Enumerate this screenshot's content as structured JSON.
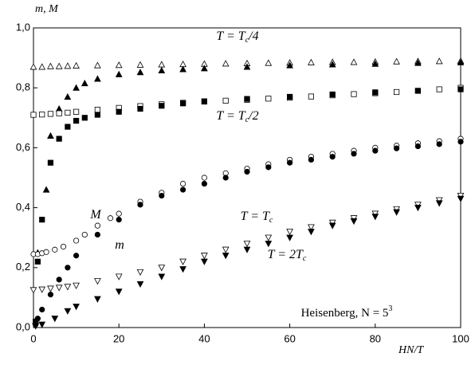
{
  "chart_data": {
    "type": "scatter",
    "x_label": "HN/T",
    "y_label": "m, M",
    "xlim": [
      0,
      100
    ],
    "ylim": [
      0,
      1.0
    ],
    "xticks": [
      0,
      20,
      40,
      60,
      80,
      100
    ],
    "yticks": [
      {
        "value": 0,
        "label": "0,0"
      },
      {
        "value": 0.2,
        "label": "0,2"
      },
      {
        "value": 0.4,
        "label": "0,4"
      },
      {
        "value": 0.6,
        "label": "0,6"
      },
      {
        "value": 0.8,
        "label": "0,8"
      },
      {
        "value": 1.0,
        "label": "1,0"
      }
    ],
    "annotations": [
      {
        "parts": [
          "T = T",
          "c",
          "/4"
        ]
      },
      {
        "parts": [
          "T = T",
          "c",
          "/2"
        ]
      },
      {
        "parts": [
          "T = T",
          "c",
          ""
        ]
      },
      {
        "parts": [
          "T = 2T",
          "c",
          ""
        ]
      },
      {
        "parts": [
          "M"
        ]
      },
      {
        "parts": [
          "m"
        ]
      },
      {
        "parts": [
          "Heisenberg,  N = 5",
          "3",
          ""
        ]
      }
    ],
    "series": [
      {
        "marker": "triangle-up",
        "filled": false,
        "color": "#000000",
        "x": [
          0,
          2,
          4,
          6,
          8,
          10,
          15,
          20,
          25,
          30,
          35,
          40,
          45,
          50,
          55,
          60,
          65,
          70,
          75,
          80,
          85,
          90,
          95,
          100
        ],
        "values": [
          0.87,
          0.87,
          0.872,
          0.872,
          0.873,
          0.874,
          0.875,
          0.876,
          0.877,
          0.878,
          0.879,
          0.88,
          0.881,
          0.882,
          0.883,
          0.884,
          0.885,
          0.886,
          0.886,
          0.887,
          0.888,
          0.889,
          0.889,
          0.89
        ]
      },
      {
        "marker": "triangle-up",
        "filled": true,
        "color": "#000000",
        "x": [
          0.5,
          1,
          3,
          4,
          6,
          8,
          10,
          12,
          15,
          20,
          25,
          30,
          35,
          40,
          50,
          60,
          70,
          80,
          90,
          100
        ],
        "values": [
          0.02,
          0.25,
          0.46,
          0.64,
          0.73,
          0.77,
          0.8,
          0.815,
          0.83,
          0.845,
          0.852,
          0.858,
          0.862,
          0.865,
          0.87,
          0.875,
          0.878,
          0.88,
          0.883,
          0.885
        ]
      },
      {
        "marker": "square",
        "filled": false,
        "color": "#000000",
        "x": [
          0,
          2,
          4,
          6,
          8,
          10,
          15,
          20,
          25,
          30,
          35,
          40,
          45,
          50,
          55,
          60,
          65,
          70,
          75,
          80,
          85,
          90,
          95,
          100
        ],
        "values": [
          0.71,
          0.711,
          0.713,
          0.715,
          0.717,
          0.72,
          0.727,
          0.733,
          0.739,
          0.745,
          0.75,
          0.754,
          0.757,
          0.76,
          0.764,
          0.767,
          0.771,
          0.775,
          0.779,
          0.782,
          0.786,
          0.79,
          0.795,
          0.8
        ]
      },
      {
        "marker": "square",
        "filled": true,
        "color": "#000000",
        "x": [
          0.5,
          1,
          2,
          4,
          6,
          8,
          10,
          12,
          15,
          20,
          25,
          30,
          35,
          40,
          50,
          60,
          70,
          80,
          90,
          100
        ],
        "values": [
          0.02,
          0.22,
          0.36,
          0.55,
          0.63,
          0.67,
          0.69,
          0.7,
          0.71,
          0.72,
          0.73,
          0.74,
          0.748,
          0.755,
          0.763,
          0.77,
          0.778,
          0.785,
          0.79,
          0.795
        ]
      },
      {
        "marker": "circle",
        "filled": false,
        "color": "#000000",
        "x": [
          0,
          1,
          2,
          3,
          5,
          7,
          10,
          12,
          15,
          18,
          20,
          25,
          30,
          35,
          40,
          45,
          50,
          55,
          60,
          65,
          70,
          75,
          80,
          85,
          90,
          95,
          100
        ],
        "values": [
          0.245,
          0.245,
          0.248,
          0.252,
          0.26,
          0.27,
          0.29,
          0.31,
          0.34,
          0.365,
          0.38,
          0.42,
          0.45,
          0.48,
          0.5,
          0.515,
          0.53,
          0.545,
          0.56,
          0.57,
          0.58,
          0.59,
          0.6,
          0.607,
          0.615,
          0.622,
          0.63
        ]
      },
      {
        "marker": "circle",
        "filled": true,
        "color": "#000000",
        "x": [
          0.5,
          1,
          2,
          4,
          6,
          8,
          10,
          15,
          20,
          25,
          30,
          35,
          40,
          45,
          50,
          55,
          60,
          65,
          70,
          75,
          80,
          85,
          90,
          95,
          100
        ],
        "values": [
          0.01,
          0.03,
          0.06,
          0.11,
          0.16,
          0.2,
          0.24,
          0.31,
          0.36,
          0.41,
          0.44,
          0.46,
          0.48,
          0.5,
          0.52,
          0.535,
          0.55,
          0.56,
          0.57,
          0.58,
          0.59,
          0.598,
          0.605,
          0.612,
          0.62
        ]
      },
      {
        "marker": "triangle-down",
        "filled": false,
        "color": "#000000",
        "x": [
          0,
          2,
          4,
          6,
          8,
          10,
          15,
          20,
          25,
          30,
          35,
          40,
          45,
          50,
          55,
          60,
          65,
          70,
          75,
          80,
          85,
          90,
          95,
          100
        ],
        "values": [
          0.125,
          0.127,
          0.13,
          0.133,
          0.136,
          0.14,
          0.155,
          0.17,
          0.185,
          0.2,
          0.22,
          0.24,
          0.26,
          0.28,
          0.3,
          0.32,
          0.335,
          0.35,
          0.365,
          0.38,
          0.395,
          0.41,
          0.425,
          0.44
        ]
      },
      {
        "marker": "triangle-down",
        "filled": true,
        "color": "#000000",
        "x": [
          0.5,
          2,
          5,
          8,
          10,
          15,
          20,
          25,
          30,
          35,
          40,
          45,
          50,
          55,
          60,
          65,
          70,
          75,
          80,
          85,
          90,
          95,
          100
        ],
        "values": [
          0.005,
          0.01,
          0.03,
          0.055,
          0.07,
          0.095,
          0.12,
          0.145,
          0.17,
          0.195,
          0.22,
          0.24,
          0.26,
          0.28,
          0.3,
          0.32,
          0.34,
          0.355,
          0.37,
          0.385,
          0.4,
          0.415,
          0.43
        ]
      }
    ]
  }
}
